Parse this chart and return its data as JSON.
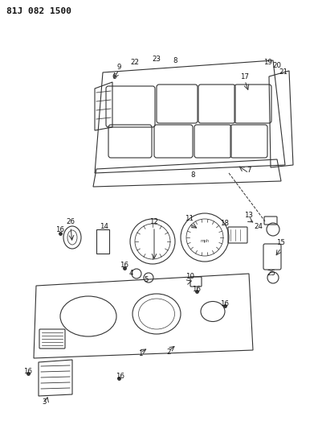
{
  "title": "81J 082 1500",
  "bg_color": "#ffffff",
  "line_color": "#333333",
  "label_color": "#111111",
  "fig_width": 3.96,
  "fig_height": 5.33,
  "dpi": 100
}
